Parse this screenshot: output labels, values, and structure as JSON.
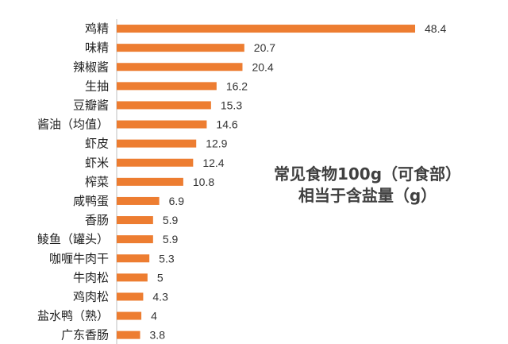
{
  "chart_data": {
    "type": "bar",
    "orientation": "horizontal",
    "categories": [
      "鸡精",
      "味精",
      "辣椒酱",
      "生抽",
      "豆瓣酱",
      "酱油（均值）",
      "虾皮",
      "虾米",
      "榨菜",
      "咸鸭蛋",
      "香肠",
      "鲮鱼（罐头）",
      "咖喱牛肉干",
      "牛肉松",
      "鸡肉松",
      "盐水鸭（熟）",
      "广东香肠"
    ],
    "values": [
      48.4,
      20.7,
      20.4,
      16.2,
      15.3,
      14.6,
      12.9,
      12.4,
      10.8,
      6.9,
      5.9,
      5.9,
      5.3,
      5,
      4.3,
      4,
      3.8
    ],
    "value_labels": [
      "48.4",
      "20.7",
      "20.4",
      "16.2",
      "15.3",
      "14.6",
      "12.9",
      "12.4",
      "10.8",
      "6.9",
      "5.9",
      "5.9",
      "5.3",
      "5",
      "4.3",
      "4",
      "3.8"
    ],
    "title": "",
    "xlabel": "",
    "ylabel": "",
    "xlim": [
      0,
      48.4
    ],
    "grid": false,
    "bar_color": "#ED7D31",
    "axis_color": "#BFBFBF",
    "annotation": [
      "常见食物100g（可食部）",
      "相当于含盐量（g）"
    ]
  }
}
